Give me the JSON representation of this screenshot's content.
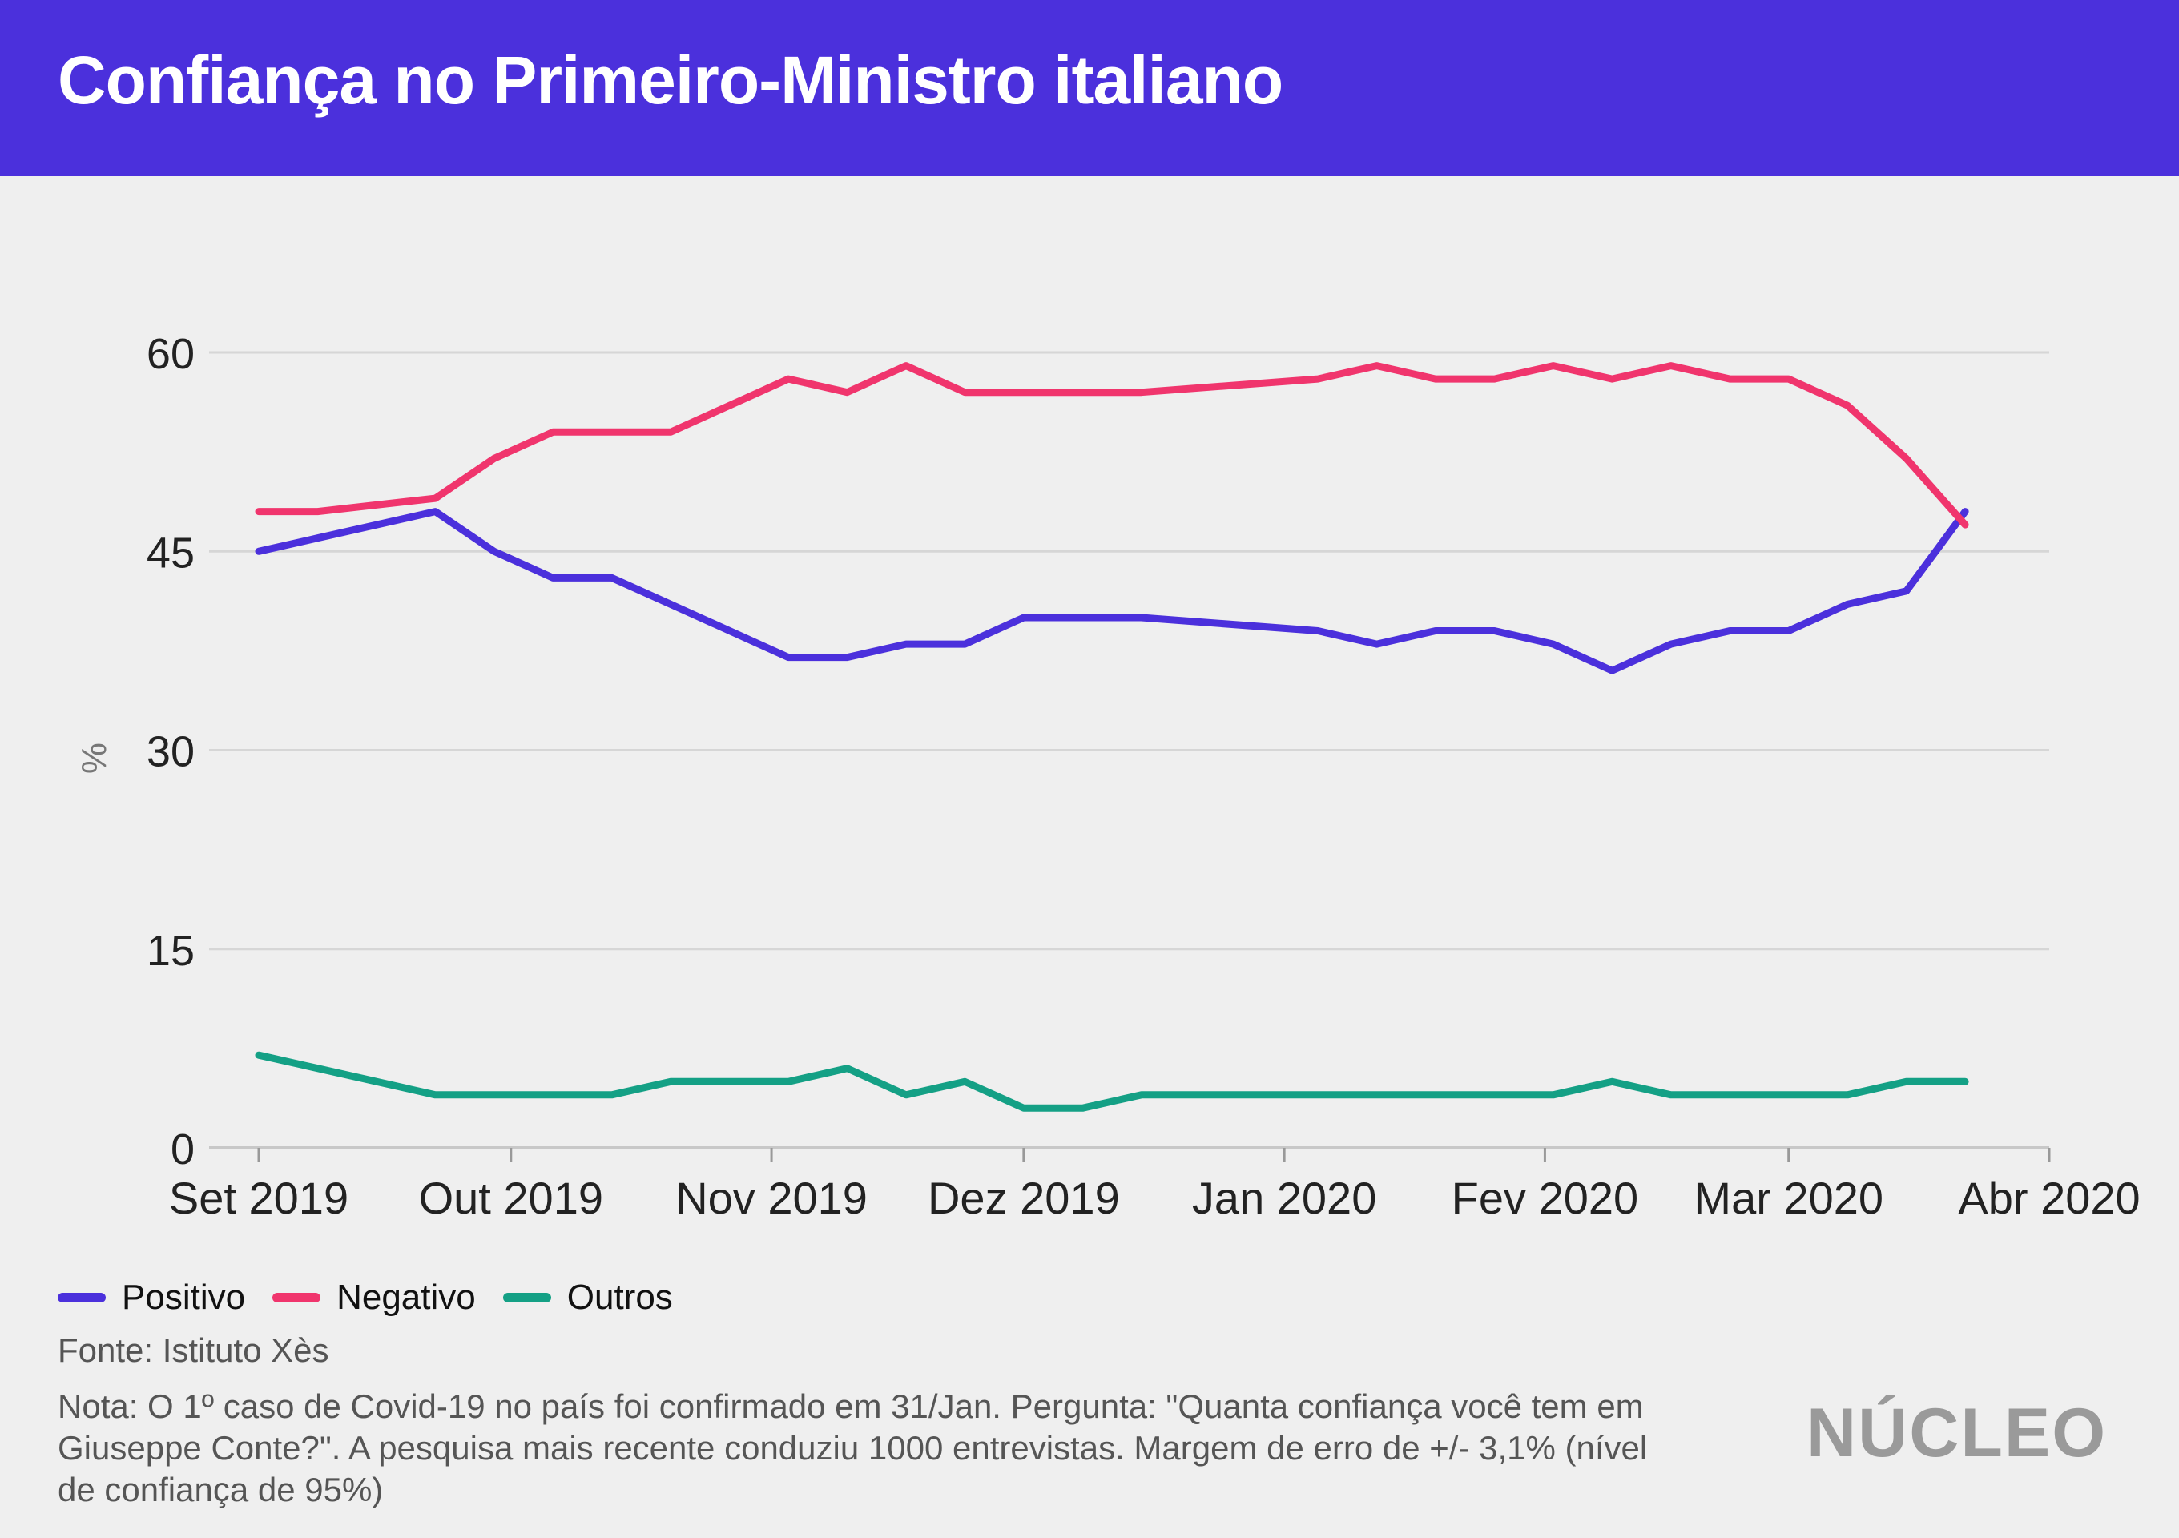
{
  "header": {
    "title": "Confiança no Primeiro-Ministro italiano"
  },
  "colors": {
    "header_bg": "#4b30dc",
    "positivo": "#4b30dc",
    "negativo": "#f0356d",
    "outros": "#14a085",
    "background": "#efefef"
  },
  "legend": {
    "items": [
      {
        "label": "Positivo",
        "color": "#4b30dc"
      },
      {
        "label": "Negativo",
        "color": "#f0356d"
      },
      {
        "label": "Outros",
        "color": "#14a085"
      }
    ]
  },
  "footer": {
    "source": "Fonte: Istituto Xès",
    "note": "Nota: O 1º caso de Covid-19 no país foi confirmado em 31/Jan. Pergunta: \"Quanta confiança você tem em Giuseppe Conte?\". A pesquisa mais recente conduziu 1000 entrevistas. Margem de erro de +/- 3,1% (nível de confiança de 95%)",
    "logo": "NÚCLEO"
  },
  "chart_data": {
    "type": "line",
    "ylabel": "%",
    "xlabel": "",
    "ylim": [
      0,
      60
    ],
    "yticks": [
      0,
      15,
      30,
      45,
      60
    ],
    "xlim": [
      "2019-09-01",
      "2020-04-01"
    ],
    "xticks": [
      {
        "date": "2019-09-01",
        "label": "Set 2019"
      },
      {
        "date": "2019-10-01",
        "label": "Out 2019"
      },
      {
        "date": "2019-11-01",
        "label": "Nov 2019"
      },
      {
        "date": "2019-12-01",
        "label": "Dez 2019"
      },
      {
        "date": "2020-01-01",
        "label": "Jan 2020"
      },
      {
        "date": "2020-02-01",
        "label": "Fev 2020"
      },
      {
        "date": "2020-03-01",
        "label": "Mar 2020"
      },
      {
        "date": "2020-04-01",
        "label": "Abr 2020"
      }
    ],
    "grid": true,
    "legend_position": "bottom-left",
    "x": [
      "2019-09-01",
      "2019-09-08",
      "2019-09-22",
      "2019-09-29",
      "2019-10-06",
      "2019-10-13",
      "2019-10-20",
      "2019-11-03",
      "2019-11-10",
      "2019-11-17",
      "2019-11-24",
      "2019-12-01",
      "2019-12-08",
      "2019-12-15",
      "2020-01-05",
      "2020-01-12",
      "2020-01-19",
      "2020-01-26",
      "2020-02-02",
      "2020-02-09",
      "2020-02-16",
      "2020-02-23",
      "2020-03-01",
      "2020-03-08",
      "2020-03-15",
      "2020-03-22"
    ],
    "series": [
      {
        "name": "Positivo",
        "color": "#4b30dc",
        "values": [
          45,
          46,
          48,
          45,
          43,
          43,
          41,
          37,
          37,
          38,
          38,
          40,
          40,
          40,
          39,
          38,
          39,
          39,
          38,
          36,
          38,
          39,
          39,
          41,
          42,
          48
        ]
      },
      {
        "name": "Negativo",
        "color": "#f0356d",
        "values": [
          48,
          48,
          49,
          52,
          54,
          54,
          54,
          58,
          57,
          59,
          57,
          57,
          57,
          57,
          58,
          59,
          58,
          58,
          59,
          58,
          59,
          58,
          58,
          56,
          52,
          47
        ]
      },
      {
        "name": "Outros",
        "color": "#14a085",
        "values": [
          7,
          6,
          4,
          4,
          4,
          4,
          5,
          5,
          6,
          4,
          5,
          3,
          3,
          4,
          4,
          4,
          4,
          4,
          4,
          5,
          4,
          4,
          4,
          4,
          5,
          5
        ]
      }
    ]
  }
}
